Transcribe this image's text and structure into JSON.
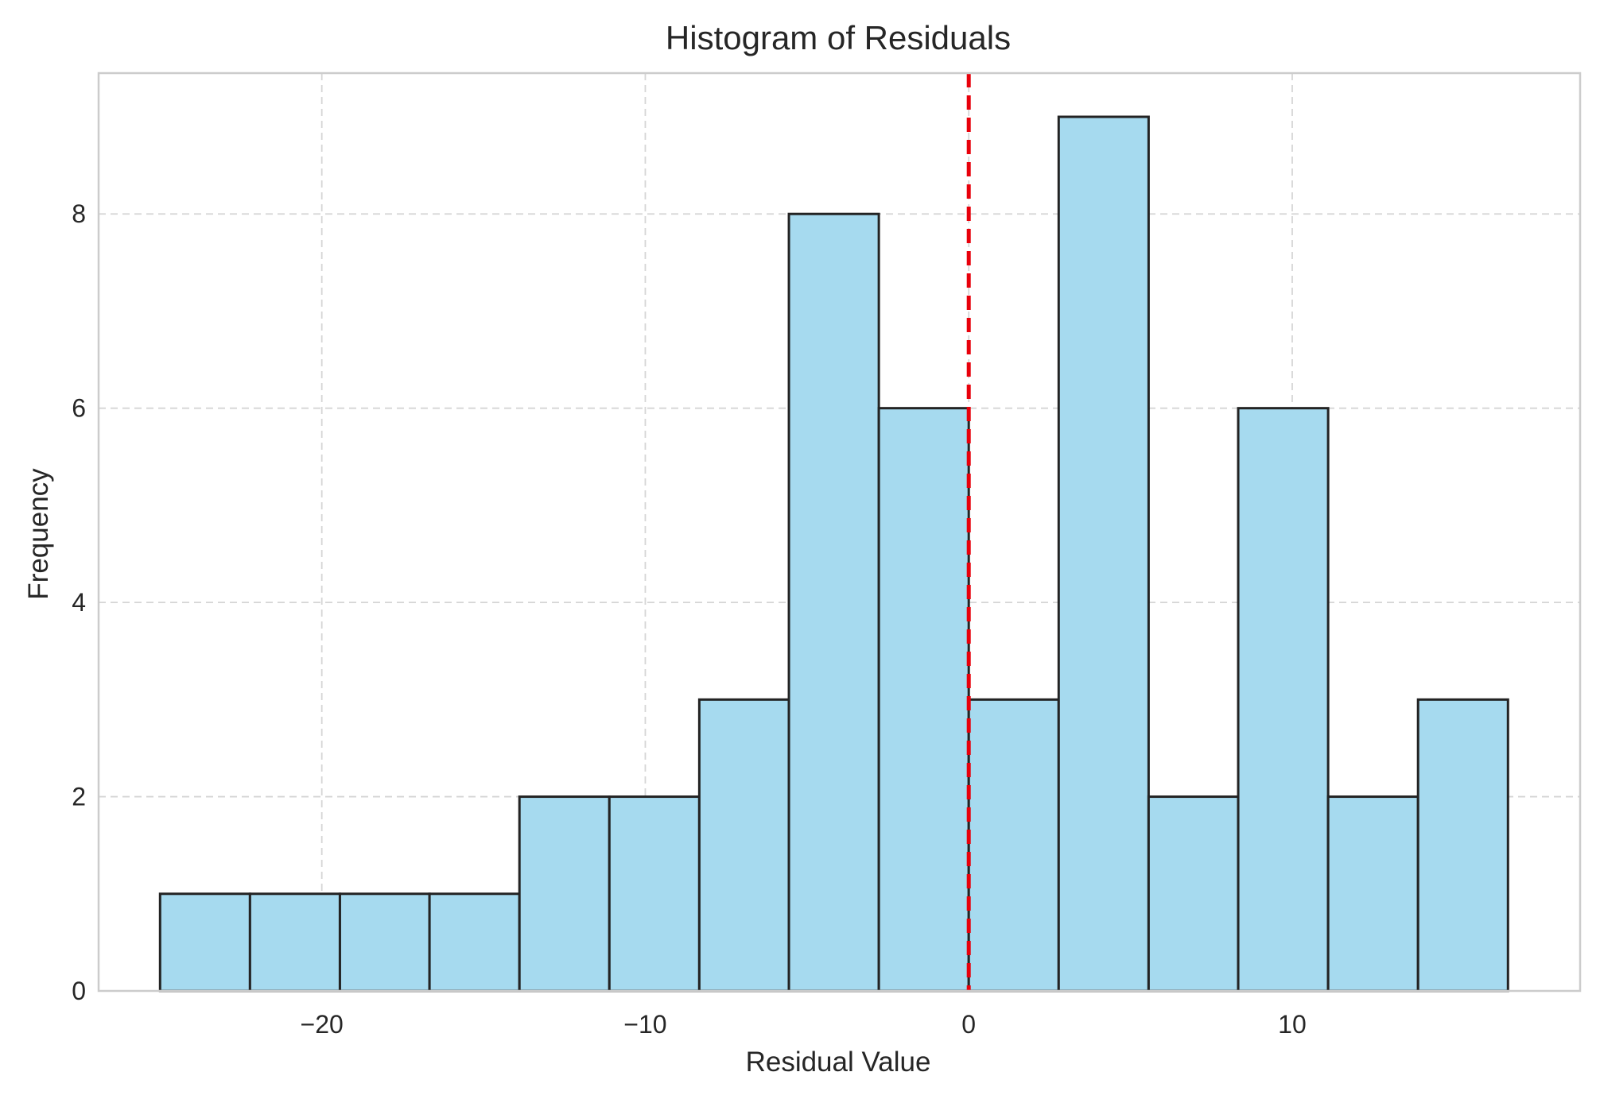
{
  "chart_data": {
    "type": "bar",
    "title": "Histogram of Residuals",
    "xlabel": "Residual Value",
    "ylabel": "Frequency",
    "bin_edges": [
      -25.0,
      -22.22,
      -19.44,
      -16.67,
      -13.89,
      -11.11,
      -8.33,
      -5.56,
      -2.78,
      0.0,
      2.78,
      5.56,
      8.33,
      11.11,
      13.89,
      16.67
    ],
    "values": [
      1,
      1,
      1,
      1,
      2,
      2,
      3,
      8,
      6,
      3,
      9,
      2,
      6,
      2,
      3
    ],
    "xlim": [
      -26.9,
      18.9
    ],
    "ylim": [
      0,
      9.45
    ],
    "xticks": [
      -20,
      -10,
      0,
      10
    ],
    "xtick_labels": [
      "−20",
      "−10",
      "0",
      "10"
    ],
    "yticks": [
      0,
      2,
      4,
      6,
      8
    ],
    "ytick_labels": [
      "0",
      "2",
      "4",
      "6",
      "8"
    ],
    "reference_line": {
      "x": 0,
      "style": "dashed",
      "color": "#e8000b"
    },
    "grid": true,
    "bar_color": "#a6daef",
    "edge_color": "#232323"
  }
}
